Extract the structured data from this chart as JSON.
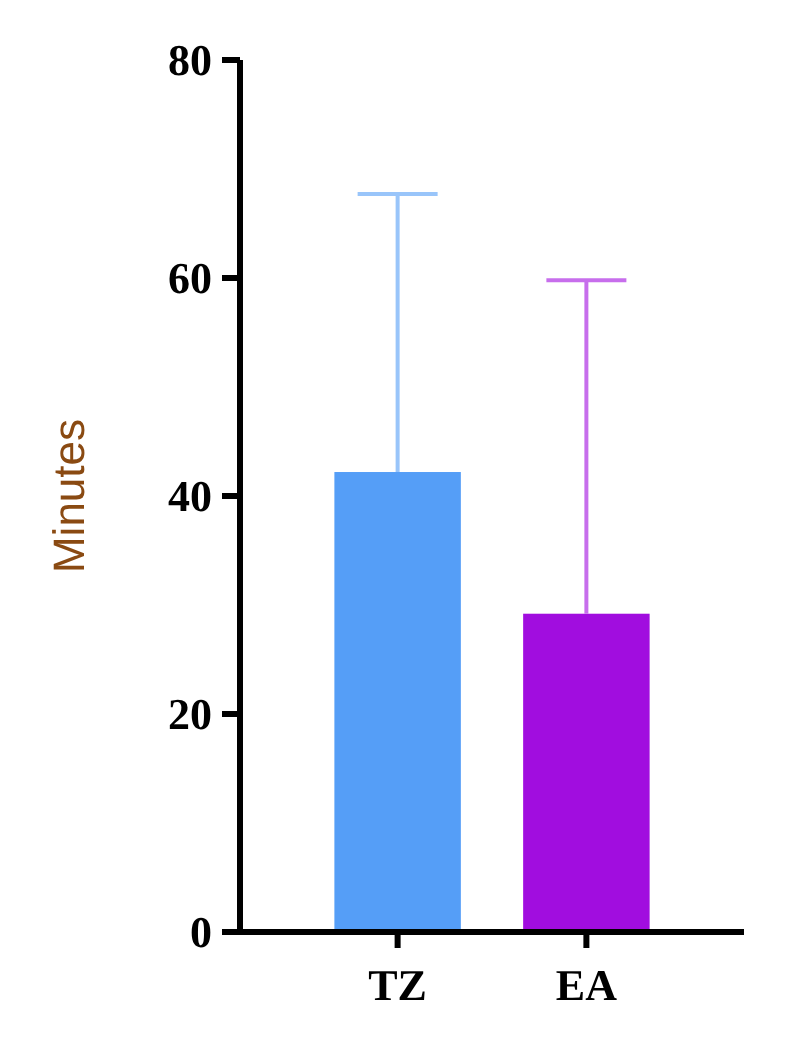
{
  "chart_data": {
    "type": "bar",
    "ylabel": "Minutes",
    "categories": [
      "TZ",
      "EA"
    ],
    "values": [
      42.2,
      29.2
    ],
    "colors": [
      "#559ef7",
      "#a10ddf"
    ],
    "errors": [
      [
        42.2,
        67.7
      ],
      [
        29.2,
        59.8
      ]
    ],
    "ylim": [
      0,
      80
    ],
    "yticks": [
      0,
      20,
      40,
      60,
      80
    ],
    "grid": false
  }
}
